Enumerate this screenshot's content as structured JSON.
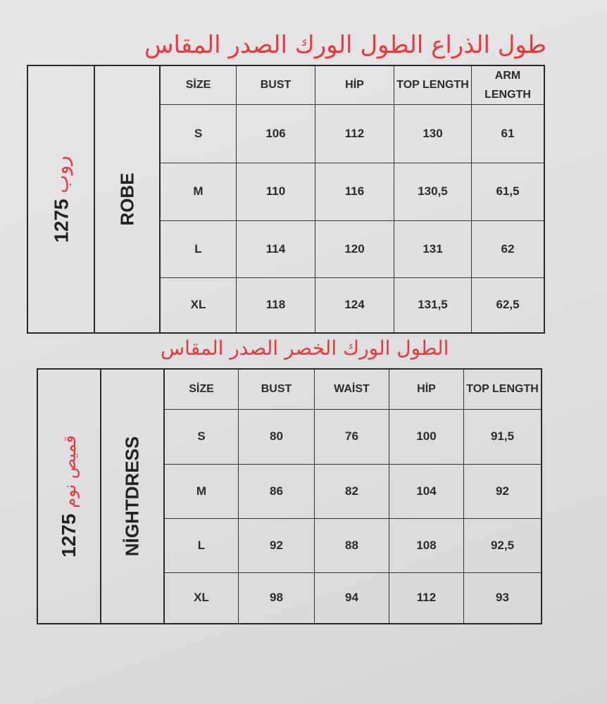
{
  "robe": {
    "arabic_header": "طول الذراع الطول الورك الصدر المقاس",
    "code": "1275",
    "code_arabic": "روب",
    "name": "ROBE",
    "columns": [
      "SİZE",
      "BUST",
      "HİP",
      "TOP LENGTH",
      "ARM LENGTH"
    ],
    "rows": [
      [
        "S",
        "106",
        "112",
        "130",
        "61"
      ],
      [
        "M",
        "110",
        "116",
        "130,5",
        "61,5"
      ],
      [
        "L",
        "114",
        "120",
        "131",
        "62"
      ],
      [
        "XL",
        "118",
        "124",
        "131,5",
        "62,5"
      ]
    ]
  },
  "nightdress": {
    "arabic_header": "الطول الورك الخصر الصدر المقاس",
    "code": "1275",
    "code_arabic": "قميص نوم",
    "name": "NİGHTDRESS",
    "columns": [
      "SİZE",
      "BUST",
      "WAİST",
      "HİP",
      "TOP LENGTH"
    ],
    "rows": [
      [
        "S",
        "80",
        "76",
        "100",
        "91,5"
      ],
      [
        "M",
        "86",
        "82",
        "104",
        "92"
      ],
      [
        "L",
        "92",
        "88",
        "108",
        "92,5"
      ],
      [
        "XL",
        "98",
        "94",
        "112",
        "93"
      ]
    ]
  },
  "colors": {
    "annotation": "#e8383b",
    "ink": "#2a2a2a"
  }
}
